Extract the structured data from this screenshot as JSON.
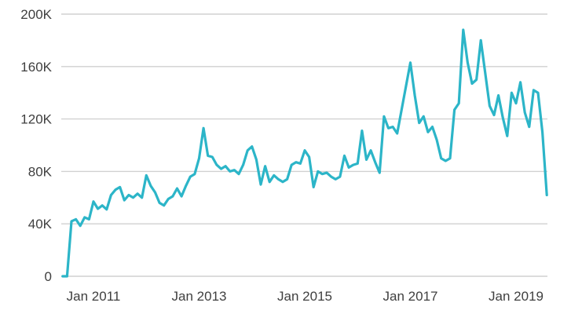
{
  "chart_data": {
    "type": "line",
    "title": "",
    "legend": "none",
    "grid": "horizontal-only",
    "x_start": "2010-06",
    "x_interval": "month",
    "unit": "thousands",
    "ylim": [
      0,
      200
    ],
    "series": [
      {
        "name": "monthly-value",
        "values_thousands": [
          0,
          0,
          42,
          43.5,
          38.5,
          45,
          43.5,
          57,
          51.5,
          54,
          51,
          62,
          66,
          68,
          58,
          62,
          60,
          63,
          60,
          77,
          69,
          64,
          56,
          54,
          59,
          61,
          67,
          61,
          69,
          76,
          78,
          90,
          113,
          92,
          91,
          85,
          82,
          84,
          80,
          81,
          78,
          85,
          96,
          99,
          89,
          70,
          84,
          72,
          77,
          74,
          72,
          74,
          85,
          87,
          86,
          96,
          91,
          68,
          80,
          78,
          79,
          76,
          74,
          76,
          92,
          83,
          85,
          86,
          111,
          89,
          96,
          87,
          79,
          122,
          113,
          114,
          109,
          127,
          145,
          163,
          138,
          117,
          122,
          110,
          114,
          104,
          90,
          88,
          90,
          127,
          132,
          188,
          163,
          147,
          150,
          180,
          155,
          130,
          123,
          138,
          121,
          107,
          140,
          132,
          148,
          125,
          114,
          142,
          140,
          110,
          62
        ]
      }
    ],
    "y_ticks": [
      {
        "value": 0,
        "label": "0"
      },
      {
        "value": 40,
        "label": "40K"
      },
      {
        "value": 80,
        "label": "80K"
      },
      {
        "value": 120,
        "label": "120K"
      },
      {
        "value": 160,
        "label": "160K"
      },
      {
        "value": 200,
        "label": "200K"
      }
    ],
    "x_ticks": [
      {
        "month_index": 7,
        "label": "Jan 2011"
      },
      {
        "month_index": 31,
        "label": "Jan 2013"
      },
      {
        "month_index": 55,
        "label": "Jan 2015"
      },
      {
        "month_index": 79,
        "label": "Jan 2017"
      },
      {
        "month_index": 103,
        "label": "Jan 2019"
      }
    ],
    "colors": {
      "line": "#2cb5c8",
      "grid": "#d1d1d1",
      "tick_text": "#3f3f3f",
      "background": "#ffffff"
    }
  }
}
